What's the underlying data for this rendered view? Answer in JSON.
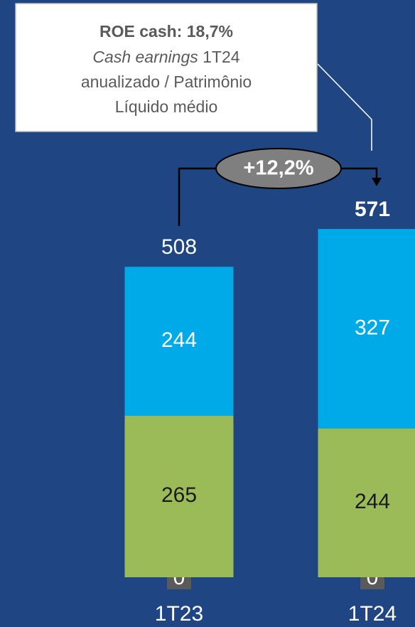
{
  "chart_data": {
    "type": "bar",
    "stacked": true,
    "categories": [
      "1T23",
      "1T24"
    ],
    "series": [
      {
        "color": "#5a5a5a",
        "values": [
          0,
          0
        ]
      },
      {
        "color": "#9bbb59",
        "values": [
          265,
          244
        ]
      },
      {
        "color": "#00a9e8",
        "values": [
          244,
          327
        ]
      }
    ],
    "totals": [
      508,
      571
    ],
    "growth_label": "+12,2%",
    "annotation": {
      "title": "ROE cash: 18,7%",
      "italic": "Cash earnings",
      "lines": [
        "1T24",
        "anualizado / Patrimônio",
        "Líquido médio"
      ]
    }
  }
}
